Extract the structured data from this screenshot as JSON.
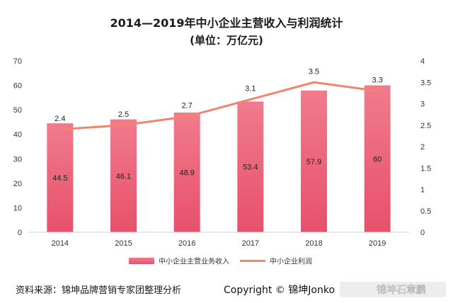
{
  "chart_data": {
    "type": "bar",
    "title": "2014—2019年中小企业主营收入与利润统计",
    "subtitle": "(单位：万亿元)",
    "categories": [
      "2014",
      "2015",
      "2016",
      "2017",
      "2018",
      "2019"
    ],
    "series": [
      {
        "name": "中小企业主营业务收入",
        "type": "bar",
        "axis": "left",
        "values": [
          44.5,
          46.1,
          48.9,
          53.4,
          57.9,
          60
        ]
      },
      {
        "name": "中小企业利润",
        "type": "line",
        "axis": "right",
        "values": [
          2.4,
          2.5,
          2.7,
          3.1,
          3.5,
          3.3
        ]
      }
    ],
    "y_left": {
      "ticks": [
        "0",
        "10",
        "20",
        "30",
        "40",
        "50",
        "60",
        "70"
      ],
      "ylim": [
        0,
        70
      ]
    },
    "y_right": {
      "ticks": [
        "0",
        "0.5",
        "1",
        "1.5",
        "2",
        "2.5",
        "3",
        "3.5",
        "4"
      ],
      "ylim": [
        0,
        4
      ]
    },
    "bar_labels": [
      "44.5",
      "46.1",
      "48.9",
      "53.4",
      "57.9",
      "60"
    ],
    "line_labels": [
      "2.4",
      "2.5",
      "2.7",
      "3.1",
      "3.5",
      "3.3"
    ],
    "legend_position": "bottom",
    "grid": false,
    "colors": {
      "bar_top": "#f07b8c",
      "bar_bottom": "#e8506a",
      "line": "#f0846e",
      "background": "#ffffff"
    }
  },
  "footer": {
    "source": "资料来源：锦坤品牌营销专家团整理分析",
    "copyright": "Copyright © 锦坤Jonko",
    "watermark": "锦坤石章鹏"
  }
}
